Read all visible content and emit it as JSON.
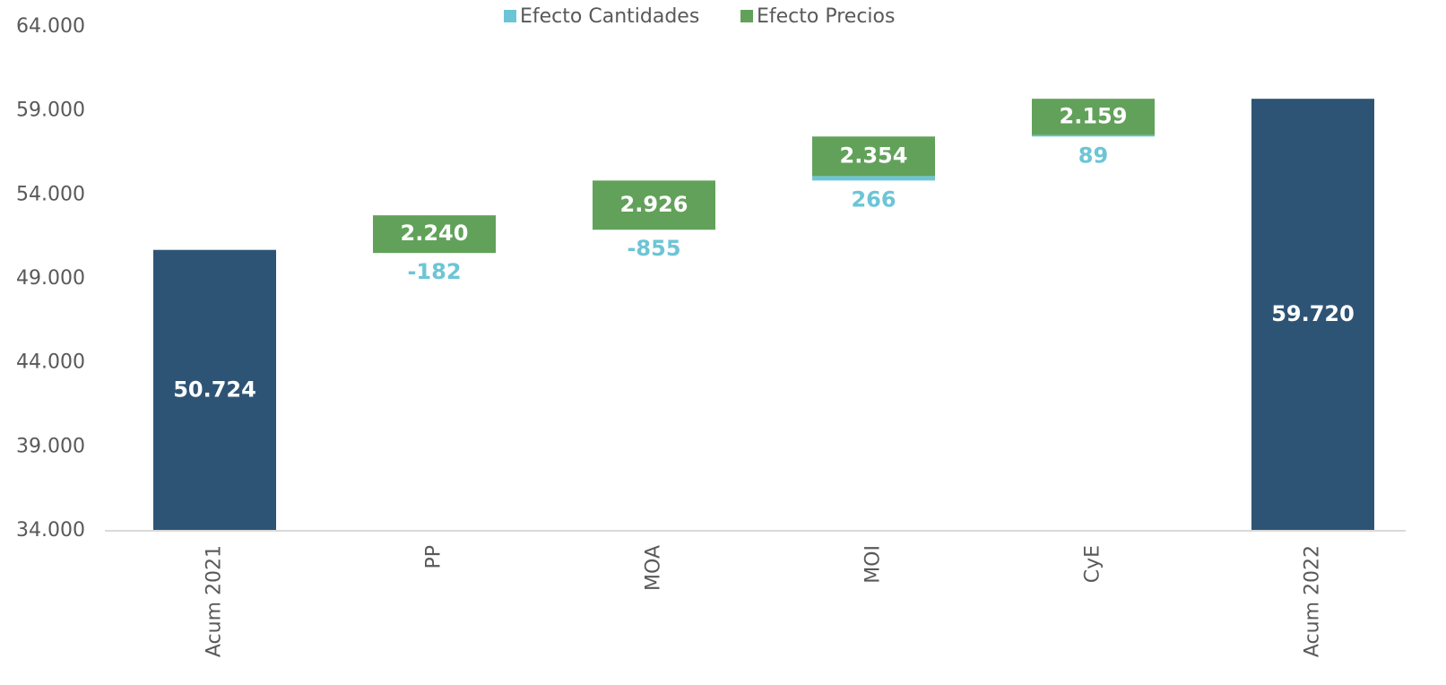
{
  "chart_data": {
    "type": "waterfall",
    "categories": [
      "Acum 2021",
      "PP",
      "MOA",
      "MOI",
      "CyE",
      "Acum 2022"
    ],
    "totals": {
      "color": "#2e5475",
      "values": [
        50724,
        null,
        null,
        null,
        null,
        59720
      ],
      "value_labels": [
        "50.724",
        null,
        null,
        null,
        null,
        "59.720"
      ]
    },
    "series": [
      {
        "name": "Efecto Cantidades",
        "color": "#6cc5d6",
        "values": [
          null,
          -182,
          -855,
          266,
          89,
          null
        ]
      },
      {
        "name": "Efecto Precios",
        "color": "#62a15a",
        "values": [
          null,
          2240,
          2926,
          2354,
          2159,
          null
        ],
        "value_labels": [
          null,
          "2.240",
          "2.926",
          "2.354",
          "2.159",
          null
        ]
      }
    ],
    "ylim": [
      34000,
      64000
    ],
    "yticks": [
      {
        "value": 34000,
        "label": "34.000"
      },
      {
        "value": 39000,
        "label": "39.000"
      },
      {
        "value": 44000,
        "label": "44.000"
      },
      {
        "value": 49000,
        "label": "49.000"
      },
      {
        "value": 54000,
        "label": "54.000"
      },
      {
        "value": 59000,
        "label": "59.000"
      },
      {
        "value": 64000,
        "label": "64.000"
      }
    ],
    "legend": "top"
  }
}
